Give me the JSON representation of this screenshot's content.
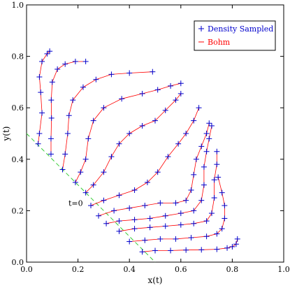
{
  "chart_data": {
    "type": "line",
    "title": "",
    "xlabel": "x(t)",
    "ylabel": "y(t)",
    "xlim": [
      0,
      1
    ],
    "ylim": [
      0,
      1
    ],
    "xticks": [
      "0.0",
      "0.2",
      "0.4",
      "0.6",
      "0.8",
      "1.0"
    ],
    "yticks": [
      "0.0",
      "0.2",
      "0.4",
      "0.6",
      "0.8",
      "1.0"
    ],
    "grid": false,
    "legend": {
      "placement": "top-right",
      "entries": [
        {
          "label": "Density Sampled",
          "color": "#0000cc",
          "marker": "plus"
        },
        {
          "label": "Bohm",
          "color": "#ff0000",
          "marker": "line"
        }
      ]
    },
    "annotation": {
      "text": "t=0",
      "x": 0.23,
      "y": 0.23
    },
    "initial_line": {
      "points": [
        [
          0.0,
          0.5
        ],
        [
          0.5,
          0.0
        ]
      ],
      "color": "#33cc33",
      "style": "dashed"
    },
    "series": [
      {
        "points": [
          [
            0.045,
            0.46
          ],
          [
            0.05,
            0.5
          ],
          [
            0.06,
            0.58
          ],
          [
            0.055,
            0.66
          ],
          [
            0.05,
            0.72
          ],
          [
            0.06,
            0.78
          ],
          [
            0.08,
            0.81
          ],
          [
            0.09,
            0.82
          ]
        ]
      },
      {
        "points": [
          [
            0.095,
            0.42
          ],
          [
            0.095,
            0.48
          ],
          [
            0.097,
            0.56
          ],
          [
            0.096,
            0.63
          ],
          [
            0.1,
            0.7
          ],
          [
            0.12,
            0.75
          ],
          [
            0.15,
            0.77
          ],
          [
            0.19,
            0.78
          ],
          [
            0.23,
            0.78
          ]
        ]
      },
      {
        "points": [
          [
            0.14,
            0.36
          ],
          [
            0.15,
            0.42
          ],
          [
            0.16,
            0.5
          ],
          [
            0.165,
            0.57
          ],
          [
            0.18,
            0.63
          ],
          [
            0.22,
            0.68
          ],
          [
            0.27,
            0.71
          ],
          [
            0.33,
            0.73
          ],
          [
            0.4,
            0.735
          ],
          [
            0.49,
            0.74
          ]
        ]
      },
      {
        "points": [
          [
            0.19,
            0.31
          ],
          [
            0.21,
            0.35
          ],
          [
            0.23,
            0.4
          ],
          [
            0.24,
            0.48
          ],
          [
            0.26,
            0.55
          ],
          [
            0.3,
            0.6
          ],
          [
            0.37,
            0.635
          ],
          [
            0.45,
            0.655
          ],
          [
            0.51,
            0.67
          ],
          [
            0.56,
            0.685
          ],
          [
            0.6,
            0.695
          ]
        ]
      },
      {
        "points": [
          [
            0.23,
            0.27
          ],
          [
            0.26,
            0.3
          ],
          [
            0.3,
            0.35
          ],
          [
            0.33,
            0.41
          ],
          [
            0.36,
            0.46
          ],
          [
            0.4,
            0.5
          ],
          [
            0.45,
            0.53
          ],
          [
            0.5,
            0.55
          ],
          [
            0.54,
            0.59
          ],
          [
            0.58,
            0.63
          ],
          [
            0.6,
            0.655
          ]
        ]
      },
      {
        "points": [
          [
            0.25,
            0.22
          ],
          [
            0.3,
            0.24
          ],
          [
            0.36,
            0.26
          ],
          [
            0.42,
            0.28
          ],
          [
            0.47,
            0.31
          ],
          [
            0.51,
            0.35
          ],
          [
            0.55,
            0.41
          ],
          [
            0.59,
            0.46
          ],
          [
            0.62,
            0.5
          ],
          [
            0.65,
            0.55
          ],
          [
            0.67,
            0.6
          ]
        ]
      },
      {
        "points": [
          [
            0.28,
            0.18
          ],
          [
            0.34,
            0.2
          ],
          [
            0.4,
            0.21
          ],
          [
            0.46,
            0.22
          ],
          [
            0.52,
            0.23
          ],
          [
            0.58,
            0.23
          ],
          [
            0.62,
            0.24
          ],
          [
            0.64,
            0.28
          ],
          [
            0.65,
            0.34
          ],
          [
            0.66,
            0.4
          ],
          [
            0.68,
            0.45
          ],
          [
            0.7,
            0.5
          ],
          [
            0.71,
            0.54
          ]
        ]
      },
      {
        "points": [
          [
            0.31,
            0.15
          ],
          [
            0.36,
            0.16
          ],
          [
            0.42,
            0.165
          ],
          [
            0.48,
            0.17
          ],
          [
            0.54,
            0.18
          ],
          [
            0.6,
            0.19
          ],
          [
            0.65,
            0.2
          ],
          [
            0.68,
            0.24
          ],
          [
            0.69,
            0.3
          ],
          [
            0.69,
            0.37
          ],
          [
            0.7,
            0.43
          ],
          [
            0.71,
            0.48
          ],
          [
            0.72,
            0.53
          ]
        ]
      },
      {
        "points": [
          [
            0.36,
            0.12
          ],
          [
            0.42,
            0.13
          ],
          [
            0.48,
            0.135
          ],
          [
            0.54,
            0.14
          ],
          [
            0.6,
            0.145
          ],
          [
            0.65,
            0.15
          ],
          [
            0.7,
            0.16
          ],
          [
            0.72,
            0.19
          ],
          [
            0.73,
            0.25
          ],
          [
            0.73,
            0.32
          ],
          [
            0.74,
            0.38
          ],
          [
            0.74,
            0.43
          ]
        ]
      },
      {
        "points": [
          [
            0.4,
            0.08
          ],
          [
            0.46,
            0.085
          ],
          [
            0.52,
            0.09
          ],
          [
            0.58,
            0.09
          ],
          [
            0.64,
            0.095
          ],
          [
            0.7,
            0.1
          ],
          [
            0.74,
            0.11
          ],
          [
            0.76,
            0.13
          ],
          [
            0.77,
            0.17
          ],
          [
            0.77,
            0.22
          ],
          [
            0.76,
            0.27
          ],
          [
            0.745,
            0.33
          ]
        ]
      },
      {
        "points": [
          [
            0.45,
            0.04
          ],
          [
            0.5,
            0.045
          ],
          [
            0.56,
            0.045
          ],
          [
            0.62,
            0.047
          ],
          [
            0.68,
            0.048
          ],
          [
            0.74,
            0.05
          ],
          [
            0.78,
            0.055
          ],
          [
            0.8,
            0.06
          ],
          [
            0.815,
            0.07
          ],
          [
            0.82,
            0.09
          ]
        ]
      }
    ]
  }
}
